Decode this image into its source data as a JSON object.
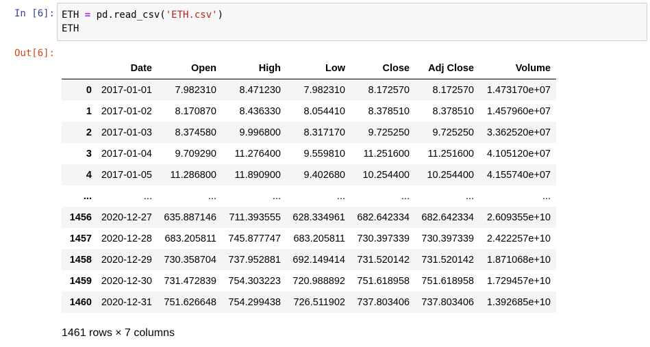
{
  "input_prompt": "In [6]:",
  "output_prompt": "Out[6]:",
  "code": {
    "line1": {
      "var": "ETH ",
      "op": "=",
      "call": " pd.read_csv(",
      "str": "'ETH.csv'",
      "close": ")"
    },
    "line2": "ETH"
  },
  "dataframe": {
    "columns": [
      "Date",
      "Open",
      "High",
      "Low",
      "Close",
      "Adj Close",
      "Volume"
    ],
    "rows": [
      [
        "0",
        "2017-01-01",
        "7.982310",
        "8.471230",
        "7.982310",
        "8.172570",
        "8.172570",
        "1.473170e+07"
      ],
      [
        "1",
        "2017-01-02",
        "8.170870",
        "8.436330",
        "8.054410",
        "8.378510",
        "8.378510",
        "1.457960e+07"
      ],
      [
        "2",
        "2017-01-03",
        "8.374580",
        "9.996800",
        "8.317170",
        "9.725250",
        "9.725250",
        "3.362520e+07"
      ],
      [
        "3",
        "2017-01-04",
        "9.709290",
        "11.276400",
        "9.559810",
        "11.251600",
        "11.251600",
        "4.105120e+07"
      ],
      [
        "4",
        "2017-01-05",
        "11.286800",
        "11.890900",
        "9.402680",
        "10.254400",
        "10.254400",
        "4.155740e+07"
      ],
      [
        "...",
        "...",
        "...",
        "...",
        "...",
        "...",
        "...",
        "..."
      ],
      [
        "1456",
        "2020-12-27",
        "635.887146",
        "711.393555",
        "628.334961",
        "682.642334",
        "682.642334",
        "2.609355e+10"
      ],
      [
        "1457",
        "2020-12-28",
        "683.205811",
        "745.877747",
        "683.205811",
        "730.397339",
        "730.397339",
        "2.422257e+10"
      ],
      [
        "1458",
        "2020-12-29",
        "730.358704",
        "737.952881",
        "692.149414",
        "731.520142",
        "731.520142",
        "1.871068e+10"
      ],
      [
        "1459",
        "2020-12-30",
        "731.472839",
        "754.303223",
        "720.988892",
        "751.618958",
        "751.618958",
        "1.729457e+10"
      ],
      [
        "1460",
        "2020-12-31",
        "751.626648",
        "754.299438",
        "726.511902",
        "737.803406",
        "737.803406",
        "1.392685e+10"
      ]
    ],
    "shape_text": "1461 rows × 7 columns"
  }
}
